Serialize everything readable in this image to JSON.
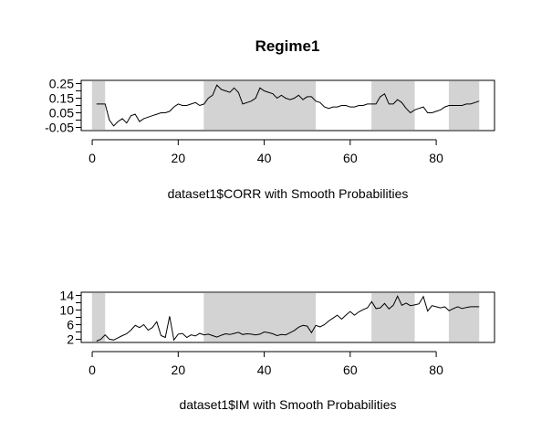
{
  "chart_data": [
    {
      "type": "line",
      "title": "Regime1",
      "xlabel": "dataset1$CORR with Smooth Probabilities",
      "ylabel": "",
      "xlim": [
        0,
        90
      ],
      "ylim": [
        -0.05,
        0.25
      ],
      "x_ticks": [
        "0",
        "20",
        "40",
        "60",
        "80"
      ],
      "y_ticks": [
        "-0.05",
        "0.05",
        "0.15",
        "0.25"
      ],
      "shaded_regions": [
        [
          1,
          3
        ],
        [
          27,
          52
        ],
        [
          66,
          75
        ],
        [
          84,
          90
        ]
      ],
      "series": [
        {
          "x": [
            1,
            2,
            3,
            4,
            5,
            6,
            7,
            8,
            9,
            10,
            11,
            12,
            13,
            14,
            15,
            16,
            17,
            18,
            19,
            20,
            21,
            22,
            23,
            24,
            25,
            26,
            27,
            28,
            29,
            30,
            31,
            32,
            33,
            34,
            35,
            36,
            37,
            38,
            39,
            40,
            41,
            42,
            43,
            44,
            45,
            46,
            47,
            48,
            49,
            50,
            51,
            52,
            53,
            54,
            55,
            56,
            57,
            58,
            59,
            60,
            61,
            62,
            63,
            64,
            65,
            66,
            67,
            68,
            69,
            70,
            71,
            72,
            73,
            74,
            75,
            76,
            77,
            78,
            79,
            80,
            81,
            82,
            83,
            84,
            85,
            86,
            87,
            88,
            89,
            90
          ],
          "y": [
            0.11,
            0.11,
            0.11,
            0.0,
            -0.04,
            -0.01,
            0.01,
            -0.02,
            0.03,
            0.04,
            -0.01,
            0.01,
            0.02,
            0.03,
            0.04,
            0.05,
            0.05,
            0.06,
            0.09,
            0.11,
            0.1,
            0.1,
            0.11,
            0.12,
            0.1,
            0.11,
            0.15,
            0.17,
            0.24,
            0.21,
            0.2,
            0.19,
            0.22,
            0.19,
            0.11,
            0.12,
            0.13,
            0.15,
            0.22,
            0.2,
            0.19,
            0.18,
            0.15,
            0.17,
            0.15,
            0.14,
            0.15,
            0.17,
            0.14,
            0.16,
            0.16,
            0.13,
            0.12,
            0.09,
            0.08,
            0.09,
            0.09,
            0.1,
            0.1,
            0.09,
            0.09,
            0.1,
            0.1,
            0.11,
            0.11,
            0.11,
            0.16,
            0.18,
            0.11,
            0.11,
            0.14,
            0.12,
            0.08,
            0.05,
            0.07,
            0.08,
            0.09,
            0.05,
            0.05,
            0.06,
            0.07,
            0.09,
            0.1,
            0.1,
            0.1,
            0.1,
            0.11,
            0.11,
            0.12,
            0.13
          ]
        }
      ]
    },
    {
      "type": "line",
      "title": "",
      "xlabel": "dataset1$IM with Smooth Probabilities",
      "ylabel": "",
      "xlim": [
        0,
        90
      ],
      "ylim": [
        2,
        14
      ],
      "x_ticks": [
        "0",
        "20",
        "40",
        "60",
        "80"
      ],
      "y_ticks": [
        "2",
        "6",
        "10",
        "14"
      ],
      "shaded_regions": [
        [
          1,
          3
        ],
        [
          27,
          52
        ],
        [
          66,
          75
        ],
        [
          84,
          90
        ]
      ],
      "series": [
        {
          "x": [
            1,
            2,
            3,
            4,
            5,
            6,
            7,
            8,
            9,
            10,
            11,
            12,
            13,
            14,
            15,
            16,
            17,
            18,
            19,
            20,
            21,
            22,
            23,
            24,
            25,
            26,
            27,
            28,
            29,
            30,
            31,
            32,
            33,
            34,
            35,
            36,
            37,
            38,
            39,
            40,
            41,
            42,
            43,
            44,
            45,
            46,
            47,
            48,
            49,
            50,
            51,
            52,
            53,
            54,
            55,
            56,
            57,
            58,
            59,
            60,
            61,
            62,
            63,
            64,
            65,
            66,
            67,
            68,
            69,
            70,
            71,
            72,
            73,
            74,
            75,
            76,
            77,
            78,
            79,
            80,
            81,
            82,
            83,
            84,
            85,
            86,
            87,
            88,
            89,
            90
          ],
          "y": [
            1.5,
            2.0,
            3.2,
            2.0,
            1.8,
            2.4,
            3.0,
            3.5,
            4.5,
            5.8,
            5.2,
            6.0,
            4.5,
            5.2,
            6.8,
            3.0,
            2.5,
            8.3,
            1.8,
            3.4,
            3.6,
            2.5,
            3.2,
            2.9,
            3.6,
            3.2,
            3.4,
            3.0,
            2.6,
            3.1,
            3.5,
            3.3,
            3.6,
            3.9,
            3.3,
            3.5,
            3.4,
            3.2,
            3.4,
            4.0,
            3.8,
            3.5,
            3.0,
            3.3,
            3.2,
            3.8,
            4.4,
            5.3,
            5.8,
            5.6,
            3.8,
            5.8,
            5.4,
            6.0,
            7.0,
            7.8,
            8.6,
            7.5,
            8.6,
            9.6,
            8.6,
            9.5,
            10.1,
            10.6,
            12.3,
            10.4,
            10.6,
            11.8,
            10.3,
            11.3,
            13.8,
            11.3,
            11.9,
            11.2,
            11.4,
            11.7,
            13.7,
            9.7,
            11.2,
            10.9,
            10.6,
            10.9,
            9.8,
            10.4,
            10.9,
            10.4,
            10.7,
            10.9,
            10.9,
            10.9
          ]
        }
      ]
    }
  ]
}
